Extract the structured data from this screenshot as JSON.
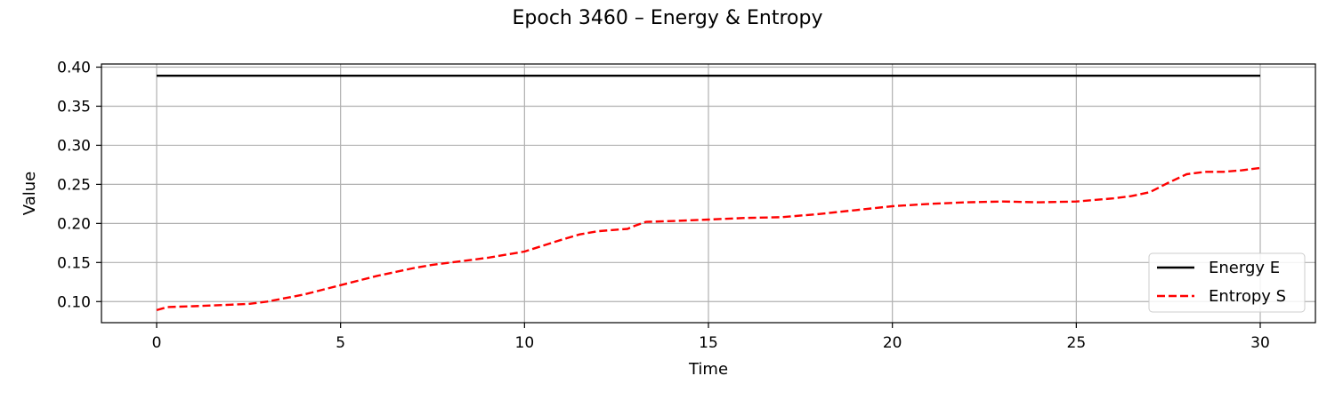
{
  "chart_data": {
    "type": "line",
    "title": "Epoch 3460 – Energy & Entropy",
    "xlabel": "Time",
    "ylabel": "Value",
    "xlim": [
      -1.5,
      31.5
    ],
    "ylim": [
      0.073,
      0.404
    ],
    "xticks": [
      0,
      5,
      10,
      15,
      20,
      25,
      30
    ],
    "xtick_labels": [
      "0",
      "5",
      "10",
      "15",
      "20",
      "25",
      "30"
    ],
    "yticks": [
      0.1,
      0.15,
      0.2,
      0.25,
      0.3,
      0.35,
      0.4
    ],
    "ytick_labels": [
      "0.10",
      "0.15",
      "0.20",
      "0.25",
      "0.30",
      "0.35",
      "0.40"
    ],
    "grid": true,
    "legend_position": "lower-right",
    "series": [
      {
        "name": "Energy E",
        "color": "#000000",
        "style": "solid",
        "x": [
          0,
          30
        ],
        "y": [
          0.389,
          0.389
        ]
      },
      {
        "name": "Entropy S",
        "color": "#ff0000",
        "style": "dashed",
        "x": [
          0,
          0.3,
          1,
          2,
          2.5,
          3,
          4,
          5,
          6,
          7,
          7.5,
          8,
          9,
          10,
          11,
          11.5,
          12,
          12.5,
          12.8,
          13,
          13.3,
          14,
          15,
          16,
          17,
          18,
          19,
          20,
          21,
          22,
          23,
          24,
          25,
          26,
          26.5,
          27,
          27.5,
          28,
          28.5,
          29,
          29.5,
          30
        ],
        "y": [
          0.089,
          0.093,
          0.094,
          0.096,
          0.097,
          0.1,
          0.109,
          0.121,
          0.133,
          0.143,
          0.147,
          0.15,
          0.156,
          0.164,
          0.179,
          0.186,
          0.19,
          0.192,
          0.193,
          0.197,
          0.202,
          0.203,
          0.205,
          0.207,
          0.208,
          0.212,
          0.217,
          0.222,
          0.225,
          0.227,
          0.228,
          0.227,
          0.228,
          0.232,
          0.235,
          0.24,
          0.252,
          0.263,
          0.266,
          0.266,
          0.268,
          0.271
        ]
      }
    ]
  }
}
